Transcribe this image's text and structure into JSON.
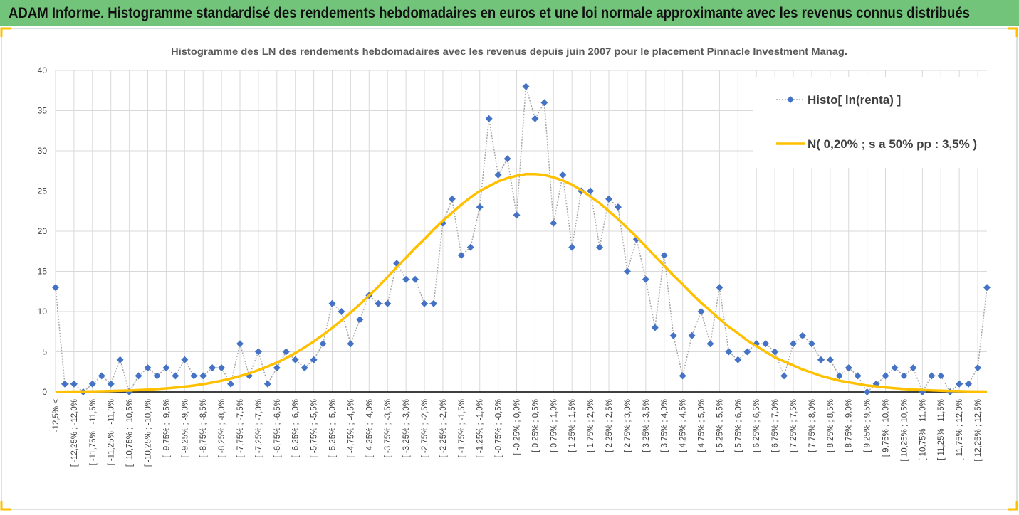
{
  "header": {
    "title": "ADAM Informe. Histogramme standardisé des rendements hebdomadaires en euros et une loi normale approximante avec les revenus connus distribués"
  },
  "chart_data": {
    "type": "line",
    "title": "Histogramme des LN des rendements hebdomadaires avec les revenus depuis juin 2007 pour le placement Pinnacle Investment Manag.",
    "categories": [
      "-12,5% <",
      null,
      "[ -12,25% ; -12,0%",
      null,
      "[ -11,75% ; -11,5%",
      null,
      "[ -11,25% ; -11,0%",
      null,
      "[ -10,75% ; -10,5%",
      null,
      "[ -10,25% ; -10,0%",
      null,
      "[ -9,75% ; -9,5%",
      null,
      "[ -9,25% ; -9,0%",
      null,
      "[ -8,75% ; -8,5%",
      null,
      "[ -8,25% ; -8,0%",
      null,
      "[ -7,75% ; -7,5%",
      null,
      "[ -7,25% ; -7,0%",
      null,
      "[ -6,75% ; -6,5%",
      null,
      "[ -6,25% ; -6,0%",
      null,
      "[ -5,75% ; -5,5%",
      null,
      "[ -5,25% ; -5,0%",
      null,
      "[ -4,75% ; -4,5%",
      null,
      "[ -4,25% ; -4,0%",
      null,
      "[ -3,75% ; -3,5%",
      null,
      "[ -3,25% ; -3,0%",
      null,
      "[ -2,75% ; -2,5%",
      null,
      "[ -2,25% ; -2,0%",
      null,
      "[ -1,75% ; -1,5%",
      null,
      "[ -1,25% ; -1,0%",
      null,
      "[ -0,75% ; -0,5%",
      null,
      "[ -0,25% ; 0,0%",
      null,
      "[ 0,25% ; 0,5%",
      null,
      "[ 0,75% ; 1,0%",
      null,
      "[ 1,25% ; 1,5%",
      null,
      "[ 1,75% ; 2,0%",
      null,
      "[ 2,25% ; 2,5%",
      null,
      "[ 2,75% ; 3,0%",
      null,
      "[ 3,25% ; 3,5%",
      null,
      "[ 3,75% ; 4,0%",
      null,
      "[ 4,25% ; 4,5%",
      null,
      "[ 4,75% ; 5,0%",
      null,
      "[ 5,25% ; 5,5%",
      null,
      "[ 5,75% ; 6,0%",
      null,
      "[ 6,25% ; 6,5%",
      null,
      "[ 6,75% ; 7,0%",
      null,
      "[ 7,25% ; 7,5%",
      null,
      "[ 7,75% ; 8,0%",
      null,
      "[ 8,25% ; 8,5%",
      null,
      "[ 8,75% ; 9,0%",
      null,
      "[ 9,25% ; 9,5%",
      null,
      "[ 9,75% ; 10,0%",
      null,
      "[ 10,25% ; 10,5%",
      null,
      "[ 10,75% ; 11,0%",
      null,
      "[ 11,25% ; 11,5%",
      null,
      "[ 11,75% ; 12,0%",
      null,
      "[ 12,25% ; 12,5%",
      null
    ],
    "series": [
      {
        "name": "Histo[ ln(renta) ]",
        "color": "#4472c4",
        "line_color": "#a6a6a6",
        "line_style": "dotted",
        "marker": "diamond",
        "values": [
          13,
          1,
          1,
          0,
          1,
          2,
          1,
          4,
          0,
          2,
          3,
          2,
          3,
          2,
          4,
          2,
          2,
          3,
          3,
          1,
          6,
          2,
          5,
          1,
          3,
          5,
          4,
          3,
          4,
          6,
          11,
          10,
          6,
          9,
          12,
          11,
          11,
          16,
          14,
          14,
          11,
          11,
          21,
          24,
          17,
          18,
          23,
          34,
          27,
          29,
          22,
          38,
          34,
          36,
          21,
          27,
          18,
          25,
          25,
          18,
          24,
          23,
          15,
          19,
          14,
          8,
          17,
          7,
          2,
          7,
          10,
          6,
          13,
          5,
          4,
          5,
          6,
          6,
          5,
          2,
          6,
          7,
          6,
          4,
          4,
          2,
          3,
          2,
          0,
          1,
          2,
          3,
          2,
          3,
          0,
          2,
          2,
          0,
          1,
          1,
          3,
          13
        ]
      },
      {
        "name": "N( 0,20% ; s a 50% pp : 3,5% )",
        "color": "#ffc000",
        "line_style": "solid",
        "marker": "none",
        "values": [
          0.02,
          0.03,
          0.04,
          0.06,
          0.07,
          0.09,
          0.12,
          0.15,
          0.18,
          0.23,
          0.29,
          0.36,
          0.44,
          0.54,
          0.66,
          0.8,
          0.97,
          1.17,
          1.4,
          1.66,
          1.97,
          2.31,
          2.72,
          3.16,
          3.66,
          4.2,
          4.85,
          5.53,
          6.28,
          7.09,
          7.95,
          8.9,
          9.88,
          10.9,
          12.0,
          13.1,
          14.3,
          15.5,
          16.7,
          17.9,
          19.0,
          20.2,
          21.3,
          22.3,
          23.3,
          24.2,
          25.0,
          25.6,
          26.2,
          26.6,
          26.9,
          27.1,
          27.1,
          27.0,
          26.7,
          26.3,
          25.8,
          25.1,
          24.3,
          23.5,
          22.5,
          21.5,
          20.4,
          19.3,
          18.1,
          16.9,
          15.7,
          14.5,
          13.4,
          12.2,
          11.1,
          10.1,
          9.1,
          8.1,
          7.3,
          6.4,
          5.7,
          5.0,
          4.3,
          3.8,
          3.3,
          2.8,
          2.4,
          2.0,
          1.7,
          1.4,
          1.2,
          1.0,
          0.8,
          0.7,
          0.56,
          0.46,
          0.37,
          0.3,
          0.24,
          0.19,
          0.15,
          0.12,
          0.1,
          0.07,
          0.06,
          0.04
        ]
      }
    ],
    "ylim": [
      0,
      40
    ],
    "yticks": [
      0,
      5,
      10,
      15,
      20,
      25,
      30,
      35,
      40
    ],
    "grid": true,
    "legend": "top-right"
  }
}
